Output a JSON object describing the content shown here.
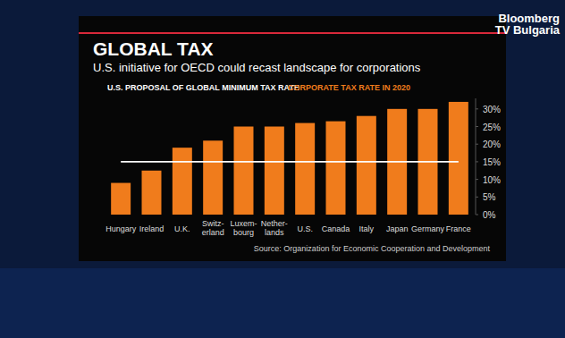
{
  "chart_data": {
    "type": "bar",
    "title": "GLOBAL TAX",
    "subtitle": "U.S. initiative for OECD could recast landscape for corporations",
    "annotations": [
      "Source: Organization for Economic Cooperation and Development",
      "Bloomberg TV Bulgaria"
    ],
    "categories": [
      "Hungary",
      "Ireland",
      "U.K.",
      "Switz-\nerland",
      "Luxem-\nbourg",
      "Nether-\nlands",
      "U.S.",
      "Canada",
      "Italy",
      "Japan",
      "Germany",
      "France"
    ],
    "series": [
      {
        "name": "CORPORATE TAX RATE IN 2020",
        "type": "bar",
        "color": "#f07c1c",
        "values": [
          9,
          12.5,
          19,
          21,
          25,
          25,
          26,
          26.5,
          28,
          30,
          30,
          32
        ]
      },
      {
        "name": "U.S. PROPOSAL OF GLOBAL MINIMUM TAX RATE",
        "type": "line",
        "color": "#ffffff",
        "values": [
          15,
          15,
          15,
          15,
          15,
          15,
          15,
          15,
          15,
          15,
          15,
          15
        ]
      }
    ],
    "ylim": [
      0,
      33
    ],
    "yticks": [
      {
        "value": 0,
        "label": "0%"
      },
      {
        "value": 5,
        "label": "5%"
      },
      {
        "value": 10,
        "label": "10%"
      },
      {
        "value": 15,
        "label": "15%"
      },
      {
        "value": 20,
        "label": "20%"
      },
      {
        "value": 25,
        "label": "25%"
      },
      {
        "value": 30,
        "label": "30%"
      }
    ],
    "grid": false,
    "legend": "top-left"
  }
}
